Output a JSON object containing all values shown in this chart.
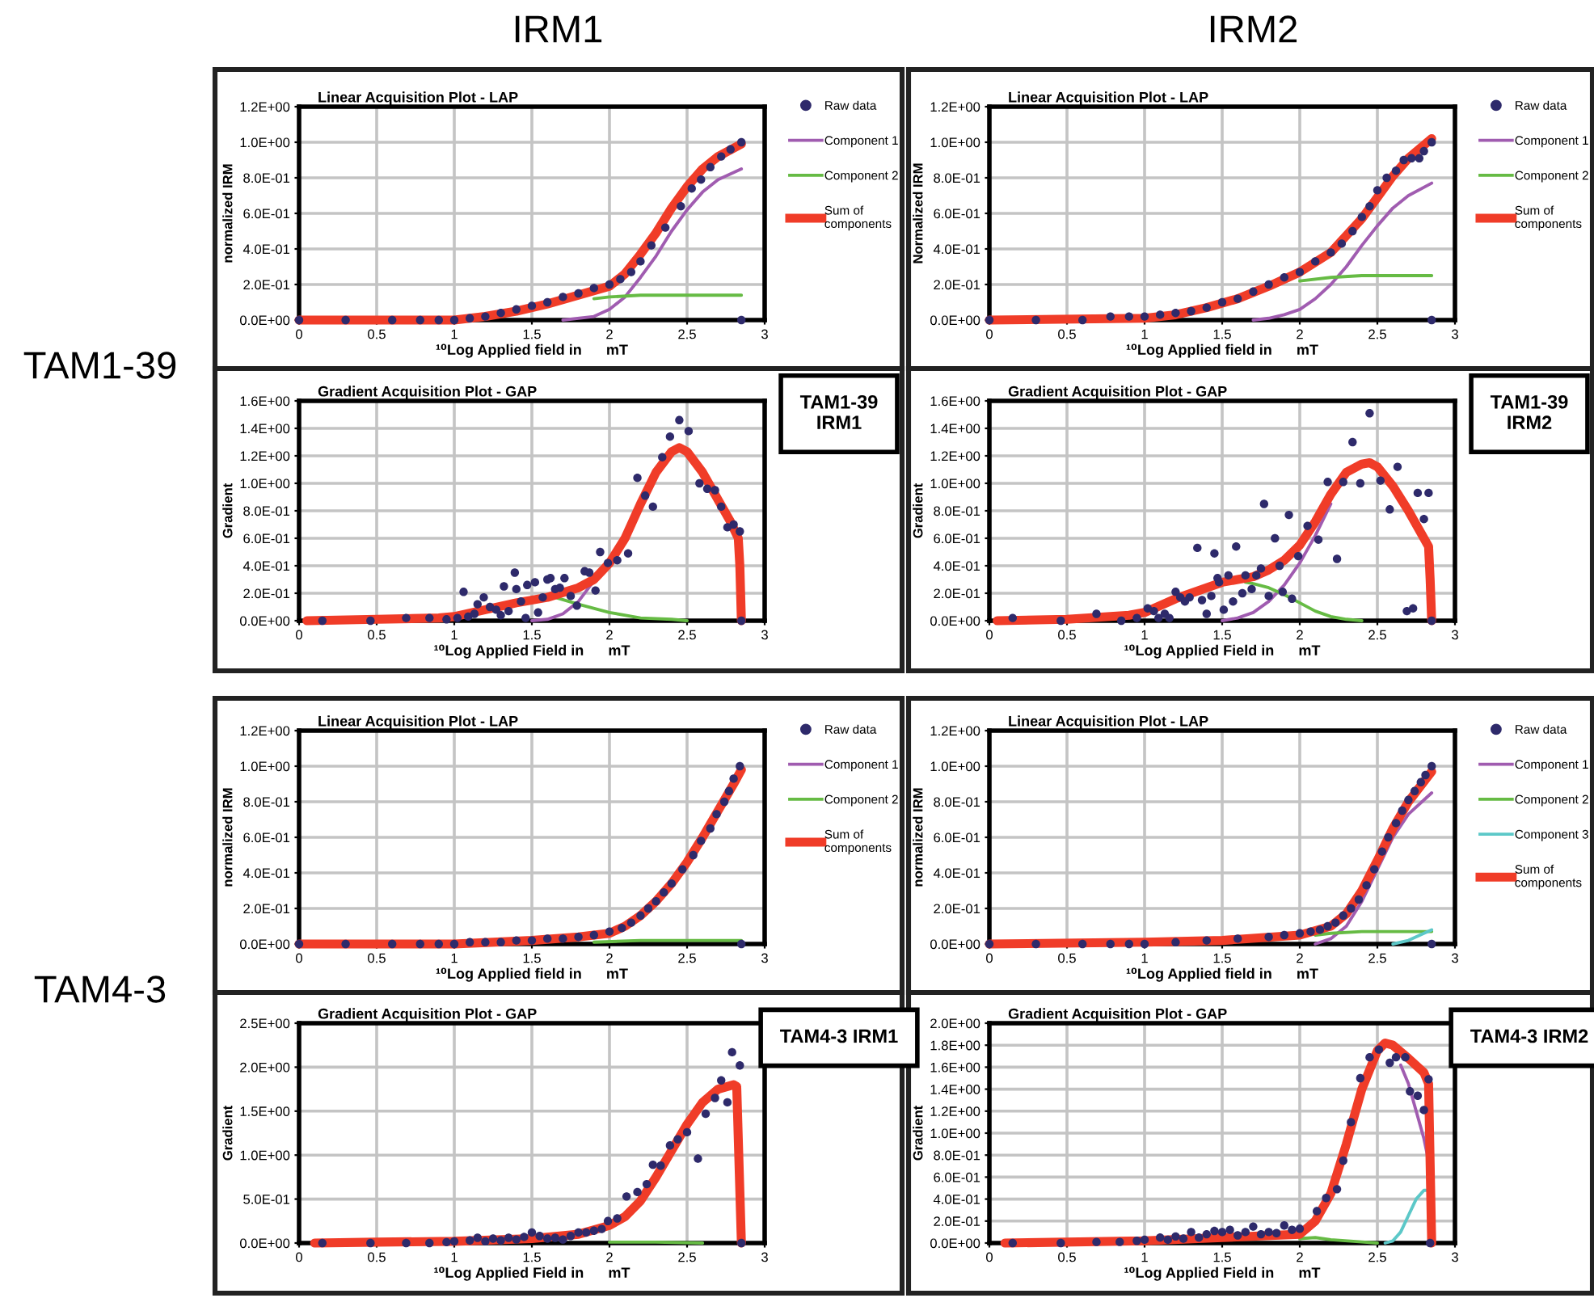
{
  "chart_data": [
    {
      "type": "line",
      "title": "Linear Acquisition Plot - LAP",
      "xlabel": "¹⁰Log Applied field in      mT",
      "ylabel": "normalized IRM",
      "xlim": [
        0,
        3
      ],
      "xticks": [
        0,
        0.5,
        1,
        1.5,
        2,
        2.5,
        3
      ],
      "ylim": [
        0,
        1.2
      ],
      "yticks": [
        {
          "value": 0,
          "label": "0.0E+00"
        },
        {
          "value": 0.2,
          "label": "2.0E-01"
        },
        {
          "value": 0.4,
          "label": "4.0E-01"
        },
        {
          "value": 0.6,
          "label": "6.0E-01"
        },
        {
          "value": 0.8,
          "label": "8.0E-01"
        },
        {
          "value": 1.0,
          "label": "1.0E+00"
        },
        {
          "value": 1.2,
          "label": "1.2E+00"
        }
      ],
      "grid": true,
      "legend": "right",
      "annotations": [
        "IRM1",
        "TAM1-39"
      ],
      "series": [
        {
          "name": "Raw data",
          "type": "scatter",
          "marker": "circle",
          "color": "#2e2a6b",
          "x": [
            0,
            0.3,
            0.6,
            0.78,
            0.9,
            1.0,
            1.1,
            1.2,
            1.3,
            1.4,
            1.5,
            1.6,
            1.7,
            1.8,
            1.9,
            2.0,
            2.07,
            2.14,
            2.2,
            2.27,
            2.36,
            2.46,
            2.53,
            2.59,
            2.65,
            2.72,
            2.78,
            2.85,
            2.85
          ],
          "values": [
            0,
            0,
            0,
            0,
            0,
            0,
            0.01,
            0.02,
            0.04,
            0.06,
            0.08,
            0.1,
            0.13,
            0.15,
            0.18,
            0.2,
            0.23,
            0.27,
            0.33,
            0.42,
            0.52,
            0.64,
            0.74,
            0.79,
            0.86,
            0.92,
            0.96,
            1.0,
            0
          ]
        },
        {
          "name": "Component 1",
          "type": "line",
          "color": "#a05cb0",
          "x": [
            1.7,
            1.9,
            2.0,
            2.1,
            2.2,
            2.3,
            2.4,
            2.5,
            2.6,
            2.7,
            2.85
          ],
          "values": [
            0,
            0.02,
            0.06,
            0.13,
            0.24,
            0.36,
            0.5,
            0.62,
            0.72,
            0.79,
            0.85
          ]
        },
        {
          "name": "Component 2",
          "type": "line",
          "color": "#66bb44",
          "x": [
            1.9,
            2.0,
            2.2,
            2.5,
            2.85
          ],
          "values": [
            0.12,
            0.13,
            0.14,
            0.14,
            0.14
          ]
        },
        {
          "name": "Sum of\ncomponents",
          "type": "line",
          "color": "#f03c28",
          "x": [
            0,
            1.0,
            1.2,
            1.4,
            1.6,
            1.8,
            2.0,
            2.1,
            2.2,
            2.3,
            2.4,
            2.5,
            2.6,
            2.7,
            2.85
          ],
          "values": [
            0,
            0,
            0.02,
            0.05,
            0.09,
            0.14,
            0.19,
            0.26,
            0.37,
            0.49,
            0.63,
            0.75,
            0.85,
            0.92,
            0.99
          ]
        }
      ]
    },
    {
      "type": "line",
      "title": "Linear Acquisition Plot - LAP",
      "xlabel": "¹⁰Log Applied field in      mT",
      "ylabel": "Normalized IRM",
      "xlim": [
        0,
        3
      ],
      "xticks": [
        0,
        0.5,
        1,
        1.5,
        2,
        2.5,
        3
      ],
      "ylim": [
        0,
        1.2
      ],
      "yticks": [
        {
          "value": 0,
          "label": "0.0E+00"
        },
        {
          "value": 0.2,
          "label": "2.0E-01"
        },
        {
          "value": 0.4,
          "label": "4.0E-01"
        },
        {
          "value": 0.6,
          "label": "6.0E-01"
        },
        {
          "value": 0.8,
          "label": "8.0E-01"
        },
        {
          "value": 1.0,
          "label": "1.0E+00"
        },
        {
          "value": 1.2,
          "label": "1.2E+00"
        }
      ],
      "grid": true,
      "legend": "right",
      "annotations": [
        "IRM2"
      ],
      "series": [
        {
          "name": "Raw data",
          "type": "scatter",
          "marker": "circle",
          "color": "#2e2a6b",
          "x": [
            0,
            0.3,
            0.6,
            0.78,
            0.9,
            1.0,
            1.1,
            1.2,
            1.3,
            1.4,
            1.5,
            1.6,
            1.7,
            1.8,
            1.9,
            2.0,
            2.1,
            2.2,
            2.27,
            2.34,
            2.4,
            2.45,
            2.5,
            2.56,
            2.62,
            2.67,
            2.72,
            2.77,
            2.8,
            2.85,
            2.85
          ],
          "values": [
            0,
            0,
            0,
            0.02,
            0.02,
            0.02,
            0.03,
            0.04,
            0.05,
            0.07,
            0.1,
            0.12,
            0.16,
            0.2,
            0.24,
            0.27,
            0.33,
            0.38,
            0.43,
            0.5,
            0.58,
            0.64,
            0.73,
            0.8,
            0.84,
            0.9,
            0.91,
            0.91,
            0.95,
            1.0,
            0
          ]
        },
        {
          "name": "Component 1",
          "type": "line",
          "color": "#a05cb0",
          "x": [
            1.7,
            1.8,
            1.9,
            2.0,
            2.1,
            2.2,
            2.3,
            2.4,
            2.5,
            2.6,
            2.7,
            2.85
          ],
          "values": [
            0,
            0.01,
            0.03,
            0.06,
            0.12,
            0.2,
            0.3,
            0.42,
            0.53,
            0.63,
            0.7,
            0.77
          ]
        },
        {
          "name": "Component 2",
          "type": "line",
          "color": "#66bb44",
          "x": [
            2.0,
            2.2,
            2.4,
            2.6,
            2.85
          ],
          "values": [
            0.22,
            0.24,
            0.25,
            0.25,
            0.25
          ]
        },
        {
          "name": "Sum of\ncomponents",
          "type": "line",
          "color": "#f03c28",
          "x": [
            0,
            1.0,
            1.2,
            1.4,
            1.6,
            1.8,
            2.0,
            2.2,
            2.4,
            2.5,
            2.6,
            2.7,
            2.85
          ],
          "values": [
            0,
            0.01,
            0.03,
            0.07,
            0.12,
            0.19,
            0.27,
            0.38,
            0.57,
            0.69,
            0.81,
            0.91,
            1.02
          ]
        }
      ]
    },
    {
      "type": "line",
      "title": "Gradient Acquisition Plot - GAP",
      "xlabel": "¹⁰Log Applied Field in      mT",
      "ylabel": "Gradient",
      "xlim": [
        0,
        3
      ],
      "xticks": [
        0,
        0.5,
        1,
        1.5,
        2,
        2.5,
        3
      ],
      "ylim": [
        0,
        1.6
      ],
      "yticks": [
        {
          "value": 0,
          "label": "0.0E+00"
        },
        {
          "value": 0.2,
          "label": "2.0E-01"
        },
        {
          "value": 0.4,
          "label": "4.0E-01"
        },
        {
          "value": 0.6,
          "label": "6.0E-01"
        },
        {
          "value": 0.8,
          "label": "8.0E-01"
        },
        {
          "value": 1.0,
          "label": "1.0E+00"
        },
        {
          "value": 1.2,
          "label": "1.2E+00"
        },
        {
          "value": 1.4,
          "label": "1.4E+00"
        },
        {
          "value": 1.6,
          "label": "1.6E+00"
        }
      ],
      "grid": true,
      "annotations": [
        "TAM1-39\nIRM1"
      ],
      "series": [
        {
          "type": "scatter",
          "marker": "circle",
          "color": "#2e2a6b",
          "x": [
            0.15,
            0.46,
            0.69,
            0.84,
            0.95,
            1.02,
            1.06,
            1.09,
            1.13,
            1.15,
            1.19,
            1.23,
            1.27,
            1.3,
            1.32,
            1.35,
            1.39,
            1.4,
            1.43,
            1.46,
            1.47,
            1.52,
            1.54,
            1.57,
            1.6,
            1.62,
            1.65,
            1.68,
            1.71,
            1.75,
            1.79,
            1.84,
            1.87,
            1.91,
            1.94,
            1.99,
            2.05,
            2.12,
            2.18,
            2.23,
            2.28,
            2.34,
            2.39,
            2.45,
            2.51,
            2.58,
            2.63,
            2.68,
            2.72,
            2.76,
            2.8,
            2.84,
            2.85
          ],
          "values": [
            0,
            0,
            0.02,
            0.02,
            0.01,
            0.02,
            0.21,
            0.03,
            0.05,
            0.12,
            0.17,
            0.1,
            0.08,
            0.04,
            0.25,
            0.07,
            0.35,
            0.23,
            0.14,
            0.02,
            0.26,
            0.28,
            0.06,
            0.17,
            0.3,
            0.31,
            0.23,
            0.24,
            0.31,
            0.18,
            0.11,
            0.36,
            0.35,
            0.22,
            0.5,
            0.42,
            0.44,
            0.49,
            1.04,
            0.91,
            0.83,
            1.19,
            1.34,
            1.46,
            1.38,
            1.0,
            0.96,
            0.95,
            0.83,
            0.68,
            0.7,
            0.65,
            0
          ]
        },
        {
          "type": "line",
          "color": "#a05cb0",
          "x": [
            1.5,
            1.6,
            1.7,
            1.8,
            1.9,
            2.0
          ],
          "values": [
            0,
            0.01,
            0.05,
            0.14,
            0.29,
            0.42
          ]
        },
        {
          "type": "line",
          "color": "#66bb44",
          "x": [
            1.65,
            1.8,
            2.0,
            2.2,
            2.4,
            2.5
          ],
          "values": [
            0.17,
            0.12,
            0.06,
            0.02,
            0.01,
            0
          ]
        },
        {
          "type": "line",
          "color": "#f03c28",
          "x": [
            0.05,
            0.5,
            0.9,
            1.0,
            1.2,
            1.4,
            1.6,
            1.8,
            1.9,
            2.0,
            2.1,
            2.2,
            2.3,
            2.4,
            2.45,
            2.5,
            2.6,
            2.7,
            2.78,
            2.83,
            2.84,
            2.85
          ],
          "values": [
            0,
            0.01,
            0.02,
            0.03,
            0.08,
            0.13,
            0.17,
            0.24,
            0.3,
            0.42,
            0.6,
            0.85,
            1.08,
            1.23,
            1.26,
            1.23,
            1.08,
            0.88,
            0.72,
            0.6,
            0.4,
            0
          ]
        }
      ]
    },
    {
      "type": "line",
      "title": "Gradient Acquisition Plot - GAP",
      "xlabel": "¹⁰Log Applied Field in      mT",
      "ylabel": "Gradient",
      "xlim": [
        0,
        3
      ],
      "xticks": [
        0,
        0.5,
        1,
        1.5,
        2,
        2.5,
        3
      ],
      "ylim": [
        0,
        1.6
      ],
      "yticks": [
        {
          "value": 0,
          "label": "0.0E+00"
        },
        {
          "value": 0.2,
          "label": "2.0E-01"
        },
        {
          "value": 0.4,
          "label": "4.0E-01"
        },
        {
          "value": 0.6,
          "label": "6.0E-01"
        },
        {
          "value": 0.8,
          "label": "8.0E-01"
        },
        {
          "value": 1.0,
          "label": "1.0E+00"
        },
        {
          "value": 1.2,
          "label": "1.2E+00"
        },
        {
          "value": 1.4,
          "label": "1.4E+00"
        },
        {
          "value": 1.6,
          "label": "1.6E+00"
        }
      ],
      "grid": true,
      "annotations": [
        "TAM1-39\nIRM2"
      ],
      "series": [
        {
          "type": "scatter",
          "marker": "circle",
          "color": "#2e2a6b",
          "x": [
            0.15,
            0.46,
            0.69,
            0.85,
            0.95,
            1.02,
            1.06,
            1.09,
            1.13,
            1.16,
            1.2,
            1.23,
            1.26,
            1.29,
            1.34,
            1.37,
            1.4,
            1.43,
            1.45,
            1.47,
            1.48,
            1.51,
            1.54,
            1.57,
            1.59,
            1.63,
            1.65,
            1.69,
            1.72,
            1.75,
            1.77,
            1.8,
            1.84,
            1.87,
            1.89,
            1.93,
            1.95,
            1.99,
            2.05,
            2.12,
            2.18,
            2.24,
            2.28,
            2.34,
            2.39,
            2.45,
            2.52,
            2.58,
            2.63,
            2.69,
            2.73,
            2.76,
            2.8,
            2.83,
            2.85
          ],
          "values": [
            0.02,
            0,
            0.05,
            0,
            0.02,
            0.09,
            0.07,
            0.02,
            0.05,
            0.02,
            0.21,
            0.17,
            0.14,
            0.17,
            0.53,
            0.15,
            0.05,
            0.18,
            0.49,
            0.31,
            0.28,
            0.08,
            0.33,
            0.14,
            0.54,
            0.2,
            0.33,
            0.23,
            0.33,
            0.38,
            0.85,
            0.18,
            0.6,
            0.4,
            0.21,
            0.77,
            0.16,
            0.47,
            0.69,
            0.59,
            1.01,
            0.45,
            1.01,
            1.3,
            1.0,
            1.51,
            1.02,
            0.81,
            1.12,
            0.07,
            0.09,
            0.93,
            0.74,
            0.93,
            0
          ]
        },
        {
          "type": "line",
          "color": "#a05cb0",
          "x": [
            1.5,
            1.6,
            1.7,
            1.8,
            1.9,
            2.0,
            2.1,
            2.2
          ],
          "values": [
            0,
            0.02,
            0.06,
            0.14,
            0.26,
            0.42,
            0.62,
            0.85
          ]
        },
        {
          "type": "line",
          "color": "#66bb44",
          "x": [
            1.65,
            1.7,
            1.8,
            1.9,
            2.0,
            2.1,
            2.2,
            2.3,
            2.4
          ],
          "values": [
            0.28,
            0.27,
            0.24,
            0.19,
            0.13,
            0.07,
            0.03,
            0.01,
            0
          ]
        },
        {
          "type": "line",
          "color": "#f03c28",
          "x": [
            0.05,
            0.5,
            0.9,
            1.0,
            1.2,
            1.4,
            1.5,
            1.6,
            1.7,
            1.8,
            1.9,
            2.0,
            2.1,
            2.2,
            2.3,
            2.4,
            2.45,
            2.5,
            2.6,
            2.7,
            2.8,
            2.83,
            2.84,
            2.85
          ],
          "values": [
            0,
            0.01,
            0.04,
            0.06,
            0.16,
            0.24,
            0.28,
            0.3,
            0.32,
            0.37,
            0.44,
            0.55,
            0.72,
            0.92,
            1.08,
            1.14,
            1.15,
            1.12,
            0.98,
            0.8,
            0.6,
            0.54,
            0.3,
            0
          ]
        }
      ]
    },
    {
      "type": "line",
      "title": "Linear Acquisition Plot - LAP",
      "xlabel": "¹⁰Log Applied field in      mT",
      "ylabel": "normalized IRM",
      "xlim": [
        0,
        3
      ],
      "xticks": [
        0,
        0.5,
        1,
        1.5,
        2,
        2.5,
        3
      ],
      "ylim": [
        0,
        1.2
      ],
      "yticks": [
        {
          "value": 0,
          "label": "0.0E+00"
        },
        {
          "value": 0.2,
          "label": "2.0E-01"
        },
        {
          "value": 0.4,
          "label": "4.0E-01"
        },
        {
          "value": 0.6,
          "label": "6.0E-01"
        },
        {
          "value": 0.8,
          "label": "8.0E-01"
        },
        {
          "value": 1.0,
          "label": "1.0E+00"
        },
        {
          "value": 1.2,
          "label": "1.2E+00"
        }
      ],
      "grid": true,
      "legend": "right",
      "annotations": [
        "TAM4-3"
      ],
      "series": [
        {
          "name": "Raw data",
          "type": "scatter",
          "marker": "circle",
          "color": "#2e2a6b",
          "x": [
            0,
            0.3,
            0.6,
            0.78,
            0.9,
            1.0,
            1.1,
            1.2,
            1.3,
            1.4,
            1.5,
            1.6,
            1.7,
            1.8,
            1.9,
            2.0,
            2.08,
            2.14,
            2.2,
            2.25,
            2.3,
            2.35,
            2.4,
            2.47,
            2.54,
            2.59,
            2.65,
            2.69,
            2.74,
            2.77,
            2.8,
            2.84,
            2.85
          ],
          "values": [
            0,
            0,
            0,
            0,
            0,
            0,
            0.01,
            0.01,
            0.01,
            0.02,
            0.02,
            0.03,
            0.03,
            0.04,
            0.05,
            0.07,
            0.09,
            0.12,
            0.16,
            0.2,
            0.24,
            0.29,
            0.34,
            0.42,
            0.5,
            0.58,
            0.65,
            0.73,
            0.8,
            0.86,
            0.93,
            1.0,
            0
          ]
        },
        {
          "name": "Component 1",
          "type": "line",
          "color": "#a05cb0"
        },
        {
          "name": "Component 2",
          "type": "line",
          "color": "#66bb44",
          "x": [
            1.9,
            2.2,
            2.5,
            2.85
          ],
          "values": [
            0.01,
            0.02,
            0.02,
            0.02
          ]
        },
        {
          "name": "Sum of\ncomponents",
          "type": "line",
          "color": "#f03c28",
          "x": [
            0,
            1.0,
            1.5,
            1.8,
            2.0,
            2.1,
            2.2,
            2.3,
            2.4,
            2.5,
            2.6,
            2.7,
            2.8,
            2.85
          ],
          "values": [
            0,
            0,
            0.02,
            0.04,
            0.06,
            0.1,
            0.16,
            0.24,
            0.34,
            0.46,
            0.6,
            0.75,
            0.9,
            0.98
          ]
        }
      ]
    },
    {
      "type": "line",
      "title": "Linear Acquisition Plot - LAP",
      "xlabel": "¹⁰Log Applied field in      mT",
      "ylabel": "normalized IRM",
      "xlim": [
        0,
        3
      ],
      "xticks": [
        0,
        0.5,
        1,
        1.5,
        2,
        2.5,
        3
      ],
      "ylim": [
        0,
        1.2
      ],
      "yticks": [
        {
          "value": 0,
          "label": "0.0E+00"
        },
        {
          "value": 0.2,
          "label": "2.0E-01"
        },
        {
          "value": 0.4,
          "label": "4.0E-01"
        },
        {
          "value": 0.6,
          "label": "6.0E-01"
        },
        {
          "value": 0.8,
          "label": "8.0E-01"
        },
        {
          "value": 1.0,
          "label": "1.0E+00"
        },
        {
          "value": 1.2,
          "label": "1.2E+00"
        }
      ],
      "grid": true,
      "legend": "right",
      "series": [
        {
          "name": "Raw data",
          "type": "scatter",
          "marker": "circle",
          "color": "#2e2a6b",
          "x": [
            0,
            0.3,
            0.6,
            0.78,
            0.9,
            1.0,
            1.2,
            1.4,
            1.6,
            1.8,
            1.9,
            2.0,
            2.07,
            2.13,
            2.18,
            2.23,
            2.28,
            2.33,
            2.38,
            2.43,
            2.48,
            2.53,
            2.57,
            2.62,
            2.66,
            2.7,
            2.74,
            2.78,
            2.81,
            2.85,
            2.85
          ],
          "values": [
            0,
            0,
            0,
            0,
            0,
            0,
            0.01,
            0.02,
            0.03,
            0.04,
            0.05,
            0.06,
            0.07,
            0.08,
            0.1,
            0.12,
            0.16,
            0.2,
            0.25,
            0.33,
            0.42,
            0.52,
            0.6,
            0.68,
            0.75,
            0.81,
            0.86,
            0.91,
            0.95,
            1.0,
            0
          ]
        },
        {
          "name": "Component 1",
          "type": "line",
          "color": "#a05cb0",
          "x": [
            2.1,
            2.2,
            2.3,
            2.4,
            2.5,
            2.6,
            2.7,
            2.85
          ],
          "values": [
            0,
            0.03,
            0.1,
            0.24,
            0.42,
            0.6,
            0.73,
            0.85
          ]
        },
        {
          "name": "Component 2",
          "type": "line",
          "color": "#66bb44",
          "x": [
            2.1,
            2.2,
            2.4,
            2.6,
            2.85
          ],
          "values": [
            0.05,
            0.06,
            0.07,
            0.07,
            0.07
          ]
        },
        {
          "name": "Component 3",
          "type": "line",
          "color": "#5cc8c8",
          "x": [
            2.6,
            2.7,
            2.8,
            2.85
          ],
          "values": [
            0,
            0.02,
            0.06,
            0.08
          ]
        },
        {
          "name": "Sum of\ncomponents",
          "type": "line",
          "color": "#f03c28",
          "x": [
            0,
            1.0,
            1.5,
            2.0,
            2.2,
            2.3,
            2.4,
            2.5,
            2.6,
            2.7,
            2.85
          ],
          "values": [
            0,
            0.01,
            0.02,
            0.05,
            0.1,
            0.17,
            0.3,
            0.47,
            0.65,
            0.8,
            0.97
          ]
        }
      ]
    },
    {
      "type": "line",
      "title": "Gradient Acquisition Plot - GAP",
      "xlabel": "¹⁰Log Applied Field in      mT",
      "ylabel": "Gradient",
      "xlim": [
        0,
        3
      ],
      "xticks": [
        0,
        0.5,
        1,
        1.5,
        2,
        2.5,
        3
      ],
      "ylim": [
        0,
        2.5
      ],
      "yticks": [
        {
          "value": 0,
          "label": "0.0E+00"
        },
        {
          "value": 0.5,
          "label": "5.0E-01"
        },
        {
          "value": 1.0,
          "label": "1.0E+00"
        },
        {
          "value": 1.5,
          "label": "1.5E+00"
        },
        {
          "value": 2.0,
          "label": "2.0E+00"
        },
        {
          "value": 2.5,
          "label": "2.5E+00"
        }
      ],
      "grid": true,
      "annotations": [
        "TAM4-3 IRM1"
      ],
      "series": [
        {
          "type": "scatter",
          "marker": "circle",
          "color": "#2e2a6b",
          "x": [
            0.15,
            0.46,
            0.69,
            0.84,
            0.95,
            1.0,
            1.1,
            1.15,
            1.2,
            1.25,
            1.3,
            1.35,
            1.4,
            1.45,
            1.5,
            1.55,
            1.6,
            1.65,
            1.7,
            1.75,
            1.8,
            1.85,
            1.9,
            1.95,
            1.99,
            2.05,
            2.11,
            2.18,
            2.24,
            2.28,
            2.33,
            2.39,
            2.44,
            2.5,
            2.57,
            2.62,
            2.68,
            2.72,
            2.76,
            2.79,
            2.84,
            2.85
          ],
          "values": [
            0,
            0,
            0,
            0,
            0.01,
            0.02,
            0.03,
            0.06,
            0.02,
            0.05,
            0.03,
            0.06,
            0.04,
            0.07,
            0.12,
            0.08,
            0.05,
            0.06,
            0.04,
            0.08,
            0.12,
            0.12,
            0.14,
            0.16,
            0.25,
            0.28,
            0.53,
            0.58,
            0.67,
            0.89,
            0.88,
            1.11,
            1.18,
            1.26,
            0.96,
            1.47,
            1.65,
            1.85,
            1.6,
            2.17,
            2.02,
            0
          ]
        },
        {
          "type": "line",
          "color": "#66bb44",
          "x": [
            2.0,
            2.3,
            2.6
          ],
          "values": [
            0.01,
            0.01,
            0
          ]
        },
        {
          "type": "line",
          "color": "#f03c28",
          "x": [
            0.1,
            0.5,
            1.0,
            1.5,
            1.8,
            2.0,
            2.1,
            2.2,
            2.3,
            2.4,
            2.5,
            2.6,
            2.7,
            2.8,
            2.82,
            2.85
          ],
          "values": [
            0,
            0.01,
            0.02,
            0.05,
            0.1,
            0.2,
            0.3,
            0.48,
            0.75,
            1.05,
            1.35,
            1.6,
            1.75,
            1.8,
            1.78,
            0
          ]
        }
      ]
    },
    {
      "type": "line",
      "title": "Gradient Acquisition Plot - GAP",
      "xlabel": "¹⁰Log Applied Field in      mT",
      "ylabel": "Gradient",
      "xlim": [
        0,
        3
      ],
      "xticks": [
        0,
        0.5,
        1,
        1.5,
        2,
        2.5,
        3
      ],
      "ylim": [
        0,
        2.0
      ],
      "yticks": [
        {
          "value": 0,
          "label": "0.0E+00"
        },
        {
          "value": 0.2,
          "label": "2.0E-01"
        },
        {
          "value": 0.4,
          "label": "4.0E-01"
        },
        {
          "value": 0.6,
          "label": "6.0E-01"
        },
        {
          "value": 0.8,
          "label": "8.0E-01"
        },
        {
          "value": 1.0,
          "label": "1.0E+00"
        },
        {
          "value": 1.2,
          "label": "1.2E+00"
        },
        {
          "value": 1.4,
          "label": "1.4E+00"
        },
        {
          "value": 1.6,
          "label": "1.6E+00"
        },
        {
          "value": 1.8,
          "label": "1.8E+00"
        },
        {
          "value": 2.0,
          "label": "2.0E+00"
        }
      ],
      "grid": true,
      "annotations": [
        "TAM4-3 IRM2"
      ],
      "series": [
        {
          "type": "scatter",
          "marker": "circle",
          "color": "#2e2a6b",
          "x": [
            0.15,
            0.46,
            0.69,
            0.84,
            0.95,
            1.0,
            1.1,
            1.15,
            1.2,
            1.25,
            1.3,
            1.35,
            1.4,
            1.45,
            1.5,
            1.55,
            1.6,
            1.65,
            1.7,
            1.75,
            1.8,
            1.85,
            1.9,
            1.95,
            2.0,
            2.11,
            2.17,
            2.24,
            2.28,
            2.33,
            2.39,
            2.45,
            2.51,
            2.58,
            2.62,
            2.68,
            2.71,
            2.76,
            2.8,
            2.83,
            2.84
          ],
          "values": [
            0,
            0,
            0.01,
            0.01,
            0.02,
            0.03,
            0.05,
            0.03,
            0.06,
            0.04,
            0.1,
            0.05,
            0.08,
            0.11,
            0.1,
            0.12,
            0.07,
            0.1,
            0.15,
            0.08,
            0.1,
            0.09,
            0.16,
            0.12,
            0.13,
            0.29,
            0.41,
            0.49,
            0.75,
            1.1,
            1.5,
            1.69,
            1.76,
            1.64,
            1.69,
            1.69,
            1.38,
            1.34,
            1.21,
            1.49,
            0
          ]
        },
        {
          "type": "line",
          "color": "#a05cb0",
          "x": [
            2.65,
            2.7,
            2.75,
            2.8,
            2.83
          ],
          "values": [
            1.62,
            1.45,
            1.2,
            0.95,
            0.75
          ]
        },
        {
          "type": "line",
          "color": "#66bb44",
          "x": [
            2.0,
            2.1,
            2.2,
            2.4,
            2.5
          ],
          "values": [
            0.04,
            0.05,
            0.03,
            0.01,
            0
          ]
        },
        {
          "type": "line",
          "color": "#5cc8c8",
          "x": [
            2.55,
            2.6,
            2.65,
            2.7,
            2.75,
            2.8,
            2.83
          ],
          "values": [
            0,
            0.02,
            0.1,
            0.25,
            0.4,
            0.48,
            0.48
          ]
        },
        {
          "type": "line",
          "color": "#f03c28",
          "x": [
            0.1,
            1.0,
            1.5,
            2.0,
            2.1,
            2.2,
            2.3,
            2.4,
            2.5,
            2.55,
            2.6,
            2.7,
            2.8,
            2.83,
            2.85
          ],
          "values": [
            0,
            0.02,
            0.05,
            0.08,
            0.2,
            0.45,
            0.9,
            1.4,
            1.75,
            1.82,
            1.8,
            1.68,
            1.55,
            1.45,
            0
          ]
        }
      ]
    }
  ]
}
